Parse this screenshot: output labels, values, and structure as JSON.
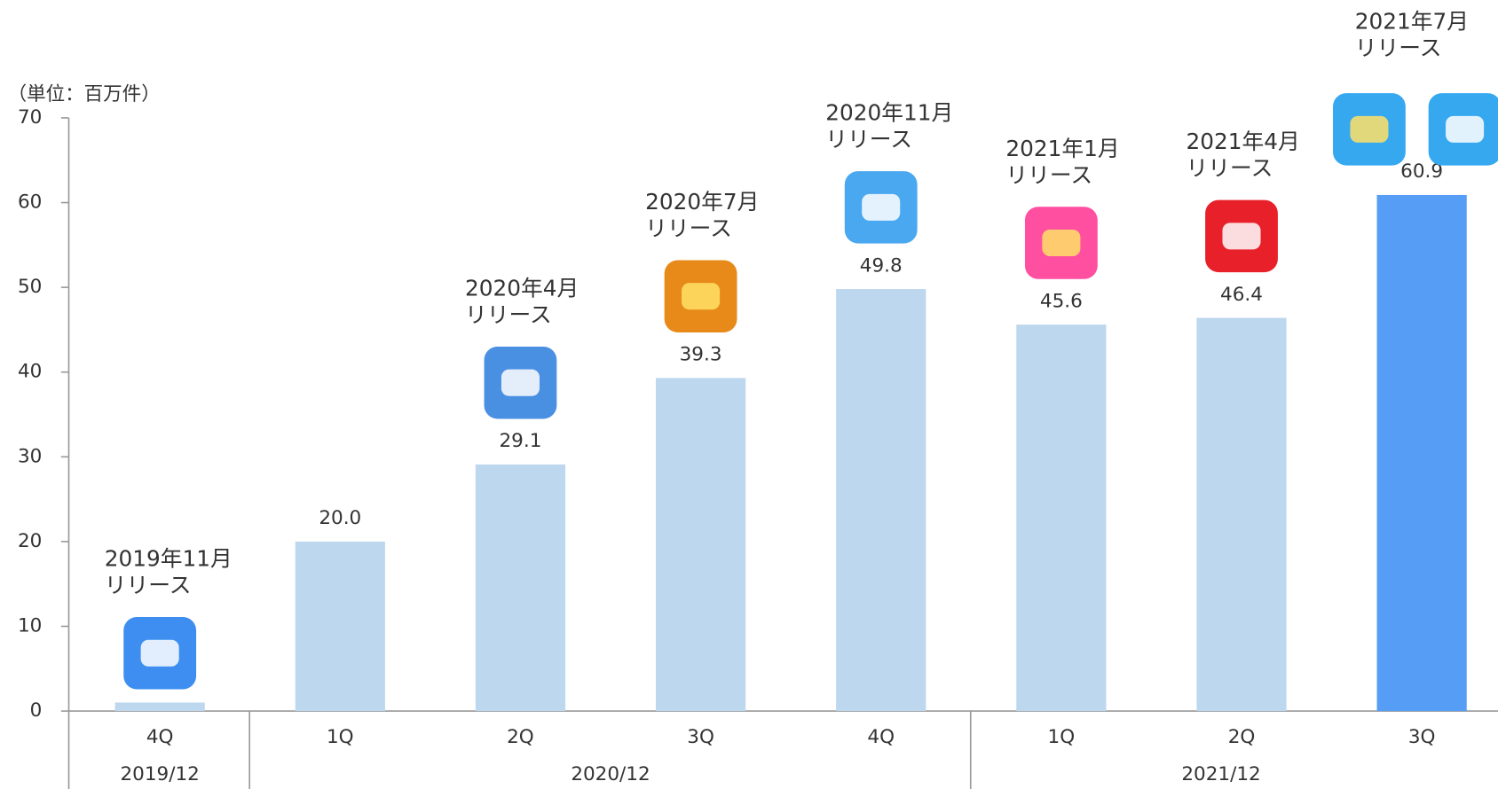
{
  "chart_data": {
    "type": "bar",
    "unit_label": "（単位：百万件）",
    "categories": [
      "4Q",
      "1Q",
      "2Q",
      "3Q",
      "4Q",
      "1Q",
      "2Q",
      "3Q"
    ],
    "groups": [
      {
        "label": "2019/12",
        "size": 1
      },
      {
        "label": "2020/12",
        "size": 4
      },
      {
        "label": "2021/12",
        "size": 3
      }
    ],
    "values": [
      1.0,
      20.0,
      29.1,
      39.3,
      49.8,
      45.6,
      46.4,
      60.9
    ],
    "value_labels": [
      null,
      "20.0",
      "29.1",
      "39.3",
      "49.8",
      "45.6",
      "46.4",
      "60.9"
    ],
    "colors": [
      "#bdd7ee",
      "#bdd7ee",
      "#bdd7ee",
      "#bdd7ee",
      "#bdd7ee",
      "#bdd7ee",
      "#bdd7ee",
      "#559df5"
    ],
    "release_labels": [
      [
        "2019年11月",
        "リリース"
      ],
      null,
      [
        "2020年4月",
        "リリース"
      ],
      [
        "2020年7月",
        "リリース"
      ],
      [
        "2020年11月",
        "リリース"
      ],
      [
        "2021年1月",
        "リリース"
      ],
      [
        "2021年4月",
        "リリース"
      ],
      [
        "2021年7月",
        "リリース"
      ]
    ],
    "ylim": [
      0,
      70
    ],
    "yticks": [
      0,
      10,
      20,
      30,
      40,
      50,
      60,
      70
    ]
  }
}
